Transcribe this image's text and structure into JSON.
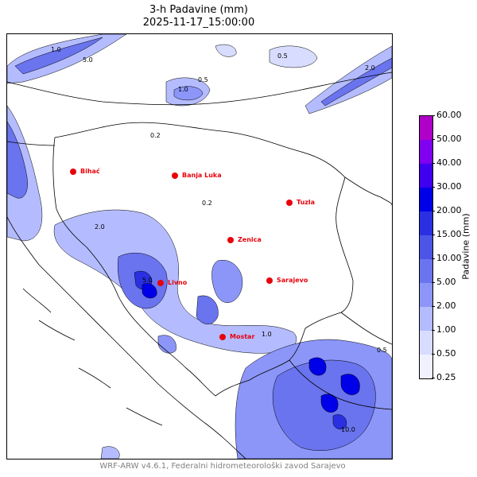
{
  "header": {
    "title": "3-h Padavine (mm)",
    "datetime": "2025-11-17_15:00:00"
  },
  "colorbar": {
    "label": "Padavine (mm)",
    "ticks": [
      "0.25",
      "0.50",
      "1.00",
      "2.00",
      "5.00",
      "10.00",
      "15.00",
      "20.00",
      "30.00",
      "40.00",
      "50.00",
      "60.00"
    ],
    "colors": [
      "#f0f0ff",
      "#d8dcff",
      "#b4bcff",
      "#8c96f8",
      "#6a74ee",
      "#4c55e6",
      "#2a30e2",
      "#0000e8",
      "#4000f0",
      "#8000f0",
      "#b000c8"
    ]
  },
  "cities": [
    {
      "name": "Bihać"
    },
    {
      "name": "Banja Luka"
    },
    {
      "name": "Tuzla"
    },
    {
      "name": "Zenica"
    },
    {
      "name": "Sarajevo"
    },
    {
      "name": "Livno"
    },
    {
      "name": "Mostar"
    }
  ],
  "contour_labels": [
    "0.2",
    "0.5",
    "1.0",
    "2.0",
    "5.0",
    "10.0"
  ],
  "footer": {
    "credit": "WRF-ARW v4.6.1, Federalni hidrometeorološki zavod Sarajevo"
  }
}
